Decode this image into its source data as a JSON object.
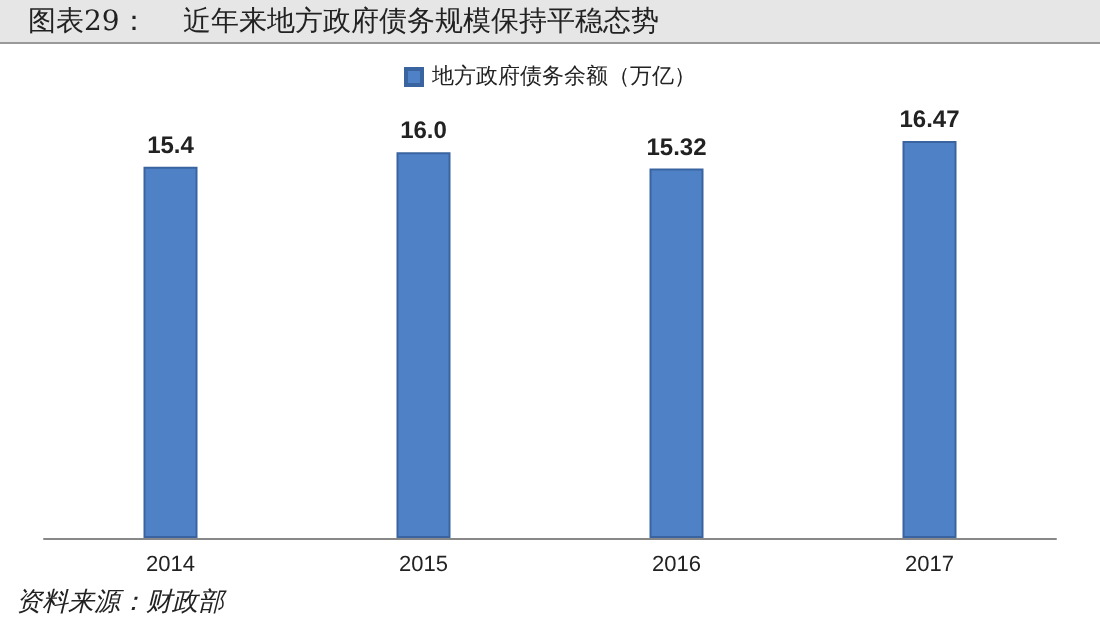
{
  "chart_data": {
    "type": "bar",
    "title": "图表29：    近年来地方政府债务规模保持平稳态势",
    "categories": [
      "2014",
      "2015",
      "2016",
      "2017"
    ],
    "series": [
      {
        "name": "地方政府债务余额（万亿）",
        "color": "#4f81c7",
        "values": [
          15.4,
          16.0,
          15.32,
          16.47
        ],
        "value_labels": [
          "15.4",
          "16.0",
          "15.32",
          "16.47"
        ]
      }
    ],
    "legend": "top",
    "grid": false,
    "annotations": [
      "资料来源：财政部"
    ]
  }
}
